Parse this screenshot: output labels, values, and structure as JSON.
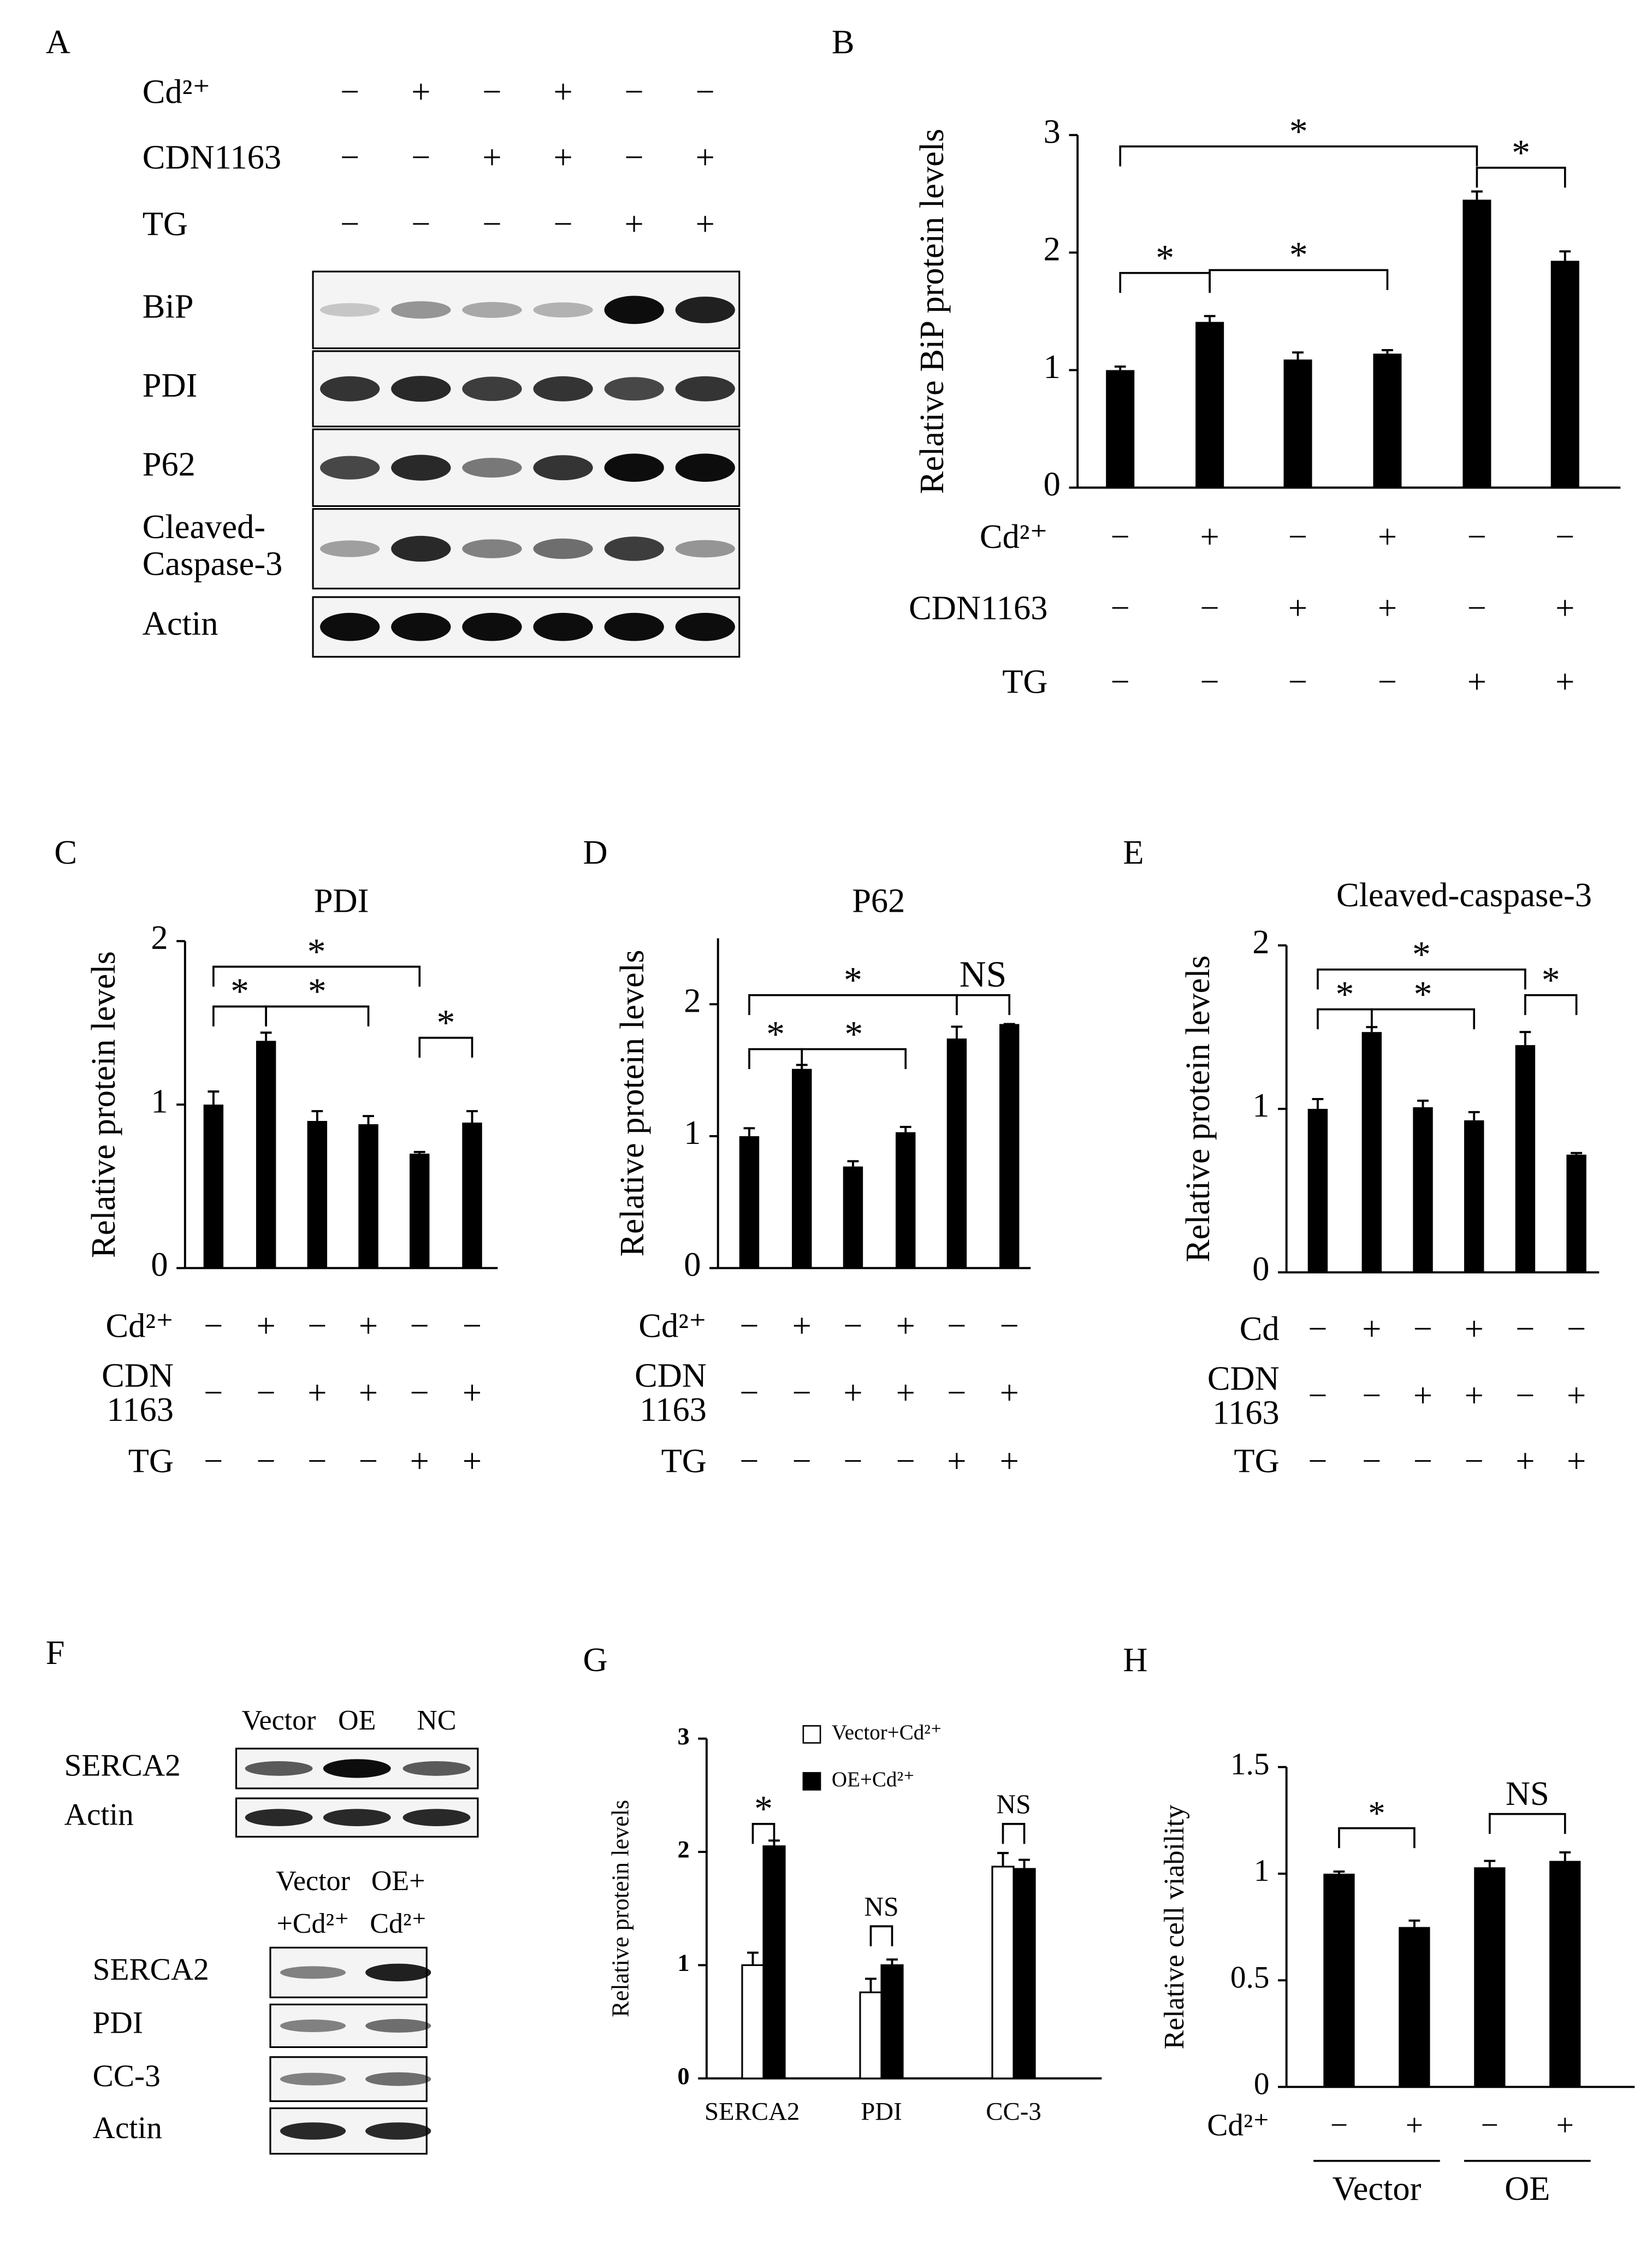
{
  "panels": [
    "A",
    "B",
    "C",
    "D",
    "E",
    "F",
    "G",
    "H"
  ],
  "blot_A": {
    "treatments": [
      {
        "label": "Cd²⁺",
        "signs": [
          "−",
          "+",
          "−",
          "+",
          "−",
          "−"
        ]
      },
      {
        "label": "CDN1163",
        "signs": [
          "−",
          "−",
          "+",
          "+",
          "−",
          "+"
        ]
      },
      {
        "label": "TG",
        "signs": [
          "−",
          "−",
          "−",
          "−",
          "+",
          "+"
        ]
      }
    ],
    "bands": [
      [
        "BiP"
      ],
      [
        "PDI"
      ],
      [
        "P62"
      ],
      [
        "Cleaved-",
        "Caspase-3"
      ],
      [
        "Actin"
      ]
    ]
  },
  "blot_F_top": {
    "lanes": [
      [
        "Vector"
      ],
      [
        "OE"
      ],
      [
        "NC"
      ]
    ],
    "bands": [
      [
        "SERCA2"
      ],
      [
        "Actin"
      ]
    ]
  },
  "blot_F_bottom": {
    "lanes": [
      [
        "Vector",
        "+Cd²⁺"
      ],
      [
        "OE+",
        "Cd²⁺"
      ]
    ],
    "bands": [
      [
        "SERCA2"
      ],
      [
        "PDI"
      ],
      [
        "CC-3"
      ],
      [
        "Actin"
      ]
    ]
  },
  "chart_data": [
    {
      "type": "bar",
      "y_label": "Relative BiP protein levels",
      "categories": [
        null,
        null,
        null,
        null,
        null,
        null
      ],
      "values": [
        1.0,
        1.41,
        1.09,
        1.14,
        2.45,
        1.93
      ],
      "errors": [
        0.03,
        0.05,
        0.06,
        0.03,
        0.07,
        0.08
      ],
      "color": "#000000",
      "ylim": [
        0,
        3
      ],
      "yticks": [
        0,
        1,
        2,
        3
      ],
      "treatments": [
        {
          "label": "Cd²⁺",
          "signs": [
            "−",
            "+",
            "−",
            "+",
            "−",
            "−"
          ]
        },
        {
          "label": "CDN1163",
          "signs": [
            "−",
            "−",
            "+",
            "+",
            "−",
            "+"
          ]
        },
        {
          "label": "TG",
          "signs": [
            "−",
            "−",
            "−",
            "−",
            "+",
            "+"
          ]
        }
      ],
      "annotations": [
        {
          "between": [
            0,
            1
          ],
          "label": "*"
        },
        {
          "between": [
            0,
            4
          ],
          "label": "*"
        },
        {
          "between": [
            1,
            3
          ],
          "label": "*"
        },
        {
          "between": [
            4,
            5
          ],
          "label": "*"
        }
      ]
    },
    {
      "type": "bar",
      "title": "PDI",
      "y_label": "Relative protein levels",
      "categories": [
        null,
        null,
        null,
        null,
        null,
        null
      ],
      "values": [
        1.0,
        1.39,
        0.9,
        0.88,
        0.7,
        0.89
      ],
      "errors": [
        0.08,
        0.05,
        0.06,
        0.05,
        0.01,
        0.07
      ],
      "color": "#000000",
      "ylim": [
        0,
        2
      ],
      "yticks": [
        0,
        1,
        2
      ],
      "treatments": [
        {
          "label": "Cd²⁺",
          "signs": [
            "−",
            "+",
            "−",
            "+",
            "−",
            "−"
          ]
        },
        {
          "label": [
            "CDN",
            "1163"
          ],
          "signs": [
            "−",
            "−",
            "+",
            "+",
            "−",
            "+"
          ]
        },
        {
          "label": "TG",
          "signs": [
            "−",
            "−",
            "−",
            "−",
            "+",
            "+"
          ]
        }
      ],
      "annotations": [
        {
          "between": [
            0,
            1
          ],
          "label": "*"
        },
        {
          "between": [
            0,
            4
          ],
          "label": "*"
        },
        {
          "between": [
            1,
            3
          ],
          "label": "*"
        },
        {
          "between": [
            4,
            5
          ],
          "label": "*"
        }
      ]
    },
    {
      "type": "bar",
      "title": "P62",
      "y_label": "Relative protein levels",
      "categories": [
        null,
        null,
        null,
        null,
        null,
        null
      ],
      "values": [
        1.0,
        1.51,
        0.77,
        1.03,
        1.74,
        1.85
      ],
      "errors": [
        0.06,
        0.03,
        0.04,
        0.04,
        0.09,
        0.0
      ],
      "color": "#000000",
      "ylim": [
        0,
        2.5
      ],
      "yticks": [
        0,
        1,
        2
      ],
      "treatments": [
        {
          "label": "Cd²⁺",
          "signs": [
            "−",
            "+",
            "−",
            "+",
            "−",
            "−"
          ]
        },
        {
          "label": [
            "CDN",
            "1163"
          ],
          "signs": [
            "−",
            "−",
            "+",
            "+",
            "−",
            "+"
          ]
        },
        {
          "label": "TG",
          "signs": [
            "−",
            "−",
            "−",
            "−",
            "+",
            "+"
          ]
        }
      ],
      "annotations": [
        {
          "between": [
            0,
            1
          ],
          "label": "*"
        },
        {
          "between": [
            0,
            4
          ],
          "label": "*"
        },
        {
          "between": [
            1,
            3
          ],
          "label": "*"
        },
        {
          "between": [
            4,
            5
          ],
          "label": "NS"
        }
      ]
    },
    {
      "type": "bar",
      "title": "Cleaved-caspase-3",
      "y_label": "Relative protein levels",
      "categories": [
        null,
        null,
        null,
        null,
        null,
        null
      ],
      "values": [
        1.0,
        1.47,
        1.01,
        0.93,
        1.39,
        0.72
      ],
      "errors": [
        0.06,
        0.03,
        0.04,
        0.05,
        0.08,
        0.01
      ],
      "color": "#000000",
      "ylim": [
        0,
        2
      ],
      "yticks": [
        0,
        1,
        2
      ],
      "treatments": [
        {
          "label": "Cd",
          "signs": [
            "−",
            "+",
            "−",
            "+",
            "−",
            "−"
          ]
        },
        {
          "label": [
            "CDN",
            "1163"
          ],
          "signs": [
            "−",
            "−",
            "+",
            "+",
            "−",
            "+"
          ]
        },
        {
          "label": "TG",
          "signs": [
            "−",
            "−",
            "−",
            "−",
            "+",
            "+"
          ]
        }
      ],
      "annotations": [
        {
          "between": [
            0,
            1
          ],
          "label": "*"
        },
        {
          "between": [
            0,
            4
          ],
          "label": "*"
        },
        {
          "between": [
            1,
            3
          ],
          "label": "*"
        },
        {
          "between": [
            4,
            5
          ],
          "label": "*"
        }
      ]
    },
    {
      "type": "grouped_bar",
      "y_label": "Relative protein levels",
      "categories": [
        "SERCA2",
        "PDI",
        "CC-3"
      ],
      "series": [
        {
          "name": "Vector+Cd²⁺",
          "color": "#ffffff",
          "values": [
            1.0,
            0.76,
            1.87
          ],
          "errors": [
            0.11,
            0.12,
            0.12
          ]
        },
        {
          "name": "OE+Cd²⁺",
          "color": "#000000",
          "values": [
            2.05,
            1.0,
            1.85
          ],
          "errors": [
            0.05,
            0.05,
            0.08
          ]
        }
      ],
      "ylim": [
        0,
        3
      ],
      "yticks": [
        0,
        1,
        2,
        3
      ],
      "annotations": [
        {
          "category": 0,
          "label": "*"
        },
        {
          "category": 1,
          "label": "NS"
        },
        {
          "category": 2,
          "label": "NS"
        }
      ]
    },
    {
      "type": "bar",
      "y_label": "Relative cell viability",
      "categories": [
        null,
        null,
        null,
        null
      ],
      "values": [
        1.0,
        0.75,
        1.03,
        1.06
      ],
      "errors": [
        0.01,
        0.03,
        0.03,
        0.04
      ],
      "color": "#000000",
      "ylim": [
        0,
        1.5
      ],
      "yticks": [
        0,
        0.5,
        1,
        1.5
      ],
      "treatments": [
        {
          "label": "Cd²⁺",
          "signs": [
            "−",
            "+",
            "−",
            "+"
          ]
        }
      ],
      "groups": [
        {
          "label": "Vector",
          "between": [
            0,
            1
          ]
        },
        {
          "label": "OE",
          "between": [
            2,
            3
          ]
        }
      ],
      "annotations": [
        {
          "between": [
            0,
            1
          ],
          "label": "*"
        },
        {
          "between": [
            2,
            3
          ],
          "label": "NS"
        }
      ]
    }
  ]
}
